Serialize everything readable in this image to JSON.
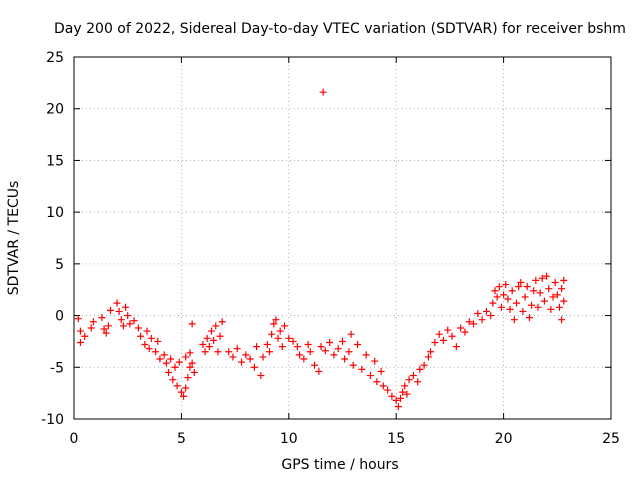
{
  "chart_data": {
    "type": "scatter",
    "title": "Day 200 of 2022, Sidereal Day-to-day VTEC variation (SDTVAR) for receiver bshm",
    "xlabel": "GPS time / hours",
    "ylabel": "SDTVAR / TECUs",
    "xlim": [
      0,
      25
    ],
    "ylim": [
      -10,
      25
    ],
    "xticks": [
      0,
      5,
      10,
      15,
      20,
      25
    ],
    "yticks": [
      -10,
      -5,
      0,
      5,
      10,
      15,
      20,
      25
    ],
    "grid": true,
    "marker": "+",
    "series": [
      {
        "name": "SDTVAR",
        "color": "#ff0000",
        "points": [
          [
            0.2,
            -0.3
          ],
          [
            0.3,
            -1.5
          ],
          [
            0.3,
            -2.6
          ],
          [
            0.5,
            -2.0
          ],
          [
            0.8,
            -1.2
          ],
          [
            0.9,
            -0.6
          ],
          [
            1.3,
            -0.2
          ],
          [
            1.4,
            -1.3
          ],
          [
            1.5,
            -1.7
          ],
          [
            1.6,
            -1.0
          ],
          [
            1.7,
            0.5
          ],
          [
            2.0,
            1.2
          ],
          [
            2.1,
            0.4
          ],
          [
            2.2,
            -0.4
          ],
          [
            2.3,
            -1.0
          ],
          [
            2.4,
            0.8
          ],
          [
            2.5,
            0.0
          ],
          [
            2.6,
            -0.8
          ],
          [
            2.8,
            -0.5
          ],
          [
            3.0,
            -1.2
          ],
          [
            3.1,
            -2.0
          ],
          [
            3.3,
            -2.8
          ],
          [
            3.4,
            -1.5
          ],
          [
            3.5,
            -3.2
          ],
          [
            3.6,
            -2.2
          ],
          [
            3.8,
            -3.5
          ],
          [
            3.9,
            -2.5
          ],
          [
            4.0,
            -4.2
          ],
          [
            4.2,
            -3.8
          ],
          [
            4.3,
            -4.6
          ],
          [
            4.4,
            -5.5
          ],
          [
            4.5,
            -4.2
          ],
          [
            4.6,
            -6.2
          ],
          [
            4.7,
            -5.0
          ],
          [
            4.8,
            -6.8
          ],
          [
            4.9,
            -4.5
          ],
          [
            5.0,
            -7.4
          ],
          [
            5.1,
            -7.8
          ],
          [
            5.2,
            -7.0
          ],
          [
            5.3,
            -6.0
          ],
          [
            5.4,
            -5.0
          ],
          [
            5.5,
            -4.6
          ],
          [
            5.6,
            -5.5
          ],
          [
            5.2,
            -4.0
          ],
          [
            5.4,
            -3.6
          ],
          [
            5.5,
            -0.8
          ],
          [
            6.0,
            -2.8
          ],
          [
            6.1,
            -3.5
          ],
          [
            6.2,
            -2.2
          ],
          [
            6.3,
            -3.0
          ],
          [
            6.4,
            -1.5
          ],
          [
            6.5,
            -2.4
          ],
          [
            6.6,
            -1.0
          ],
          [
            6.7,
            -3.5
          ],
          [
            6.8,
            -2.0
          ],
          [
            6.9,
            -0.6
          ],
          [
            7.2,
            -3.5
          ],
          [
            7.4,
            -4.0
          ],
          [
            7.6,
            -3.2
          ],
          [
            7.8,
            -4.5
          ],
          [
            8.0,
            -3.8
          ],
          [
            8.2,
            -4.2
          ],
          [
            8.4,
            -5.0
          ],
          [
            8.5,
            -3.0
          ],
          [
            8.7,
            -5.8
          ],
          [
            8.8,
            -4.0
          ],
          [
            9.0,
            -2.8
          ],
          [
            9.1,
            -3.5
          ],
          [
            9.2,
            -1.8
          ],
          [
            9.3,
            -0.8
          ],
          [
            9.4,
            -0.4
          ],
          [
            9.5,
            -2.2
          ],
          [
            9.6,
            -1.5
          ],
          [
            9.7,
            -3.0
          ],
          [
            9.8,
            -1.0
          ],
          [
            10.0,
            -2.2
          ],
          [
            10.2,
            -2.5
          ],
          [
            10.4,
            -3.0
          ],
          [
            10.5,
            -3.8
          ],
          [
            10.7,
            -4.2
          ],
          [
            10.9,
            -2.8
          ],
          [
            11.0,
            -3.5
          ],
          [
            11.2,
            -4.8
          ],
          [
            11.4,
            -5.4
          ],
          [
            11.5,
            -3.0
          ],
          [
            11.6,
            21.6
          ],
          [
            11.7,
            -3.4
          ],
          [
            11.9,
            -2.6
          ],
          [
            12.1,
            -3.8
          ],
          [
            12.3,
            -3.2
          ],
          [
            12.5,
            -2.5
          ],
          [
            12.6,
            -4.2
          ],
          [
            12.8,
            -3.5
          ],
          [
            12.9,
            -1.8
          ],
          [
            13.0,
            -4.8
          ],
          [
            13.2,
            -2.8
          ],
          [
            13.4,
            -5.2
          ],
          [
            13.6,
            -3.8
          ],
          [
            13.8,
            -5.8
          ],
          [
            14.0,
            -4.4
          ],
          [
            14.1,
            -6.4
          ],
          [
            14.3,
            -5.4
          ],
          [
            14.4,
            -6.8
          ],
          [
            14.6,
            -7.2
          ],
          [
            14.8,
            -7.8
          ],
          [
            15.0,
            -8.2
          ],
          [
            15.1,
            -8.8
          ],
          [
            15.2,
            -8.0
          ],
          [
            15.3,
            -7.4
          ],
          [
            15.4,
            -6.8
          ],
          [
            15.5,
            -7.6
          ],
          [
            15.6,
            -6.2
          ],
          [
            15.8,
            -5.8
          ],
          [
            16.0,
            -6.4
          ],
          [
            16.1,
            -5.2
          ],
          [
            16.3,
            -4.8
          ],
          [
            16.5,
            -4.0
          ],
          [
            16.6,
            -3.5
          ],
          [
            16.8,
            -2.6
          ],
          [
            17.0,
            -1.8
          ],
          [
            17.2,
            -2.4
          ],
          [
            17.4,
            -1.4
          ],
          [
            17.6,
            -2.0
          ],
          [
            17.8,
            -3.0
          ],
          [
            18.0,
            -1.2
          ],
          [
            18.2,
            -1.6
          ],
          [
            18.4,
            -0.6
          ],
          [
            18.6,
            -0.8
          ],
          [
            18.8,
            0.2
          ],
          [
            19.0,
            -0.4
          ],
          [
            19.2,
            0.4
          ],
          [
            19.4,
            0.0
          ],
          [
            19.5,
            1.2
          ],
          [
            19.6,
            2.4
          ],
          [
            19.7,
            1.8
          ],
          [
            19.8,
            2.8
          ],
          [
            19.9,
            0.8
          ],
          [
            20.0,
            2.0
          ],
          [
            20.1,
            3.0
          ],
          [
            20.2,
            1.6
          ],
          [
            20.3,
            0.6
          ],
          [
            20.4,
            2.4
          ],
          [
            20.5,
            -0.4
          ],
          [
            20.6,
            1.2
          ],
          [
            20.7,
            2.8
          ],
          [
            20.8,
            3.2
          ],
          [
            20.9,
            0.4
          ],
          [
            21.0,
            1.8
          ],
          [
            21.1,
            2.8
          ],
          [
            21.2,
            -0.2
          ],
          [
            21.3,
            1.0
          ],
          [
            21.4,
            2.4
          ],
          [
            21.5,
            3.4
          ],
          [
            21.6,
            0.8
          ],
          [
            21.7,
            2.2
          ],
          [
            21.8,
            3.6
          ],
          [
            21.9,
            1.4
          ],
          [
            22.0,
            3.8
          ],
          [
            22.1,
            2.6
          ],
          [
            22.2,
            0.6
          ],
          [
            22.3,
            1.8
          ],
          [
            22.4,
            3.2
          ],
          [
            22.5,
            2.0
          ],
          [
            22.6,
            0.8
          ],
          [
            22.7,
            2.6
          ],
          [
            22.8,
            1.4
          ],
          [
            22.8,
            3.4
          ],
          [
            22.7,
            -0.4
          ]
        ]
      }
    ]
  }
}
